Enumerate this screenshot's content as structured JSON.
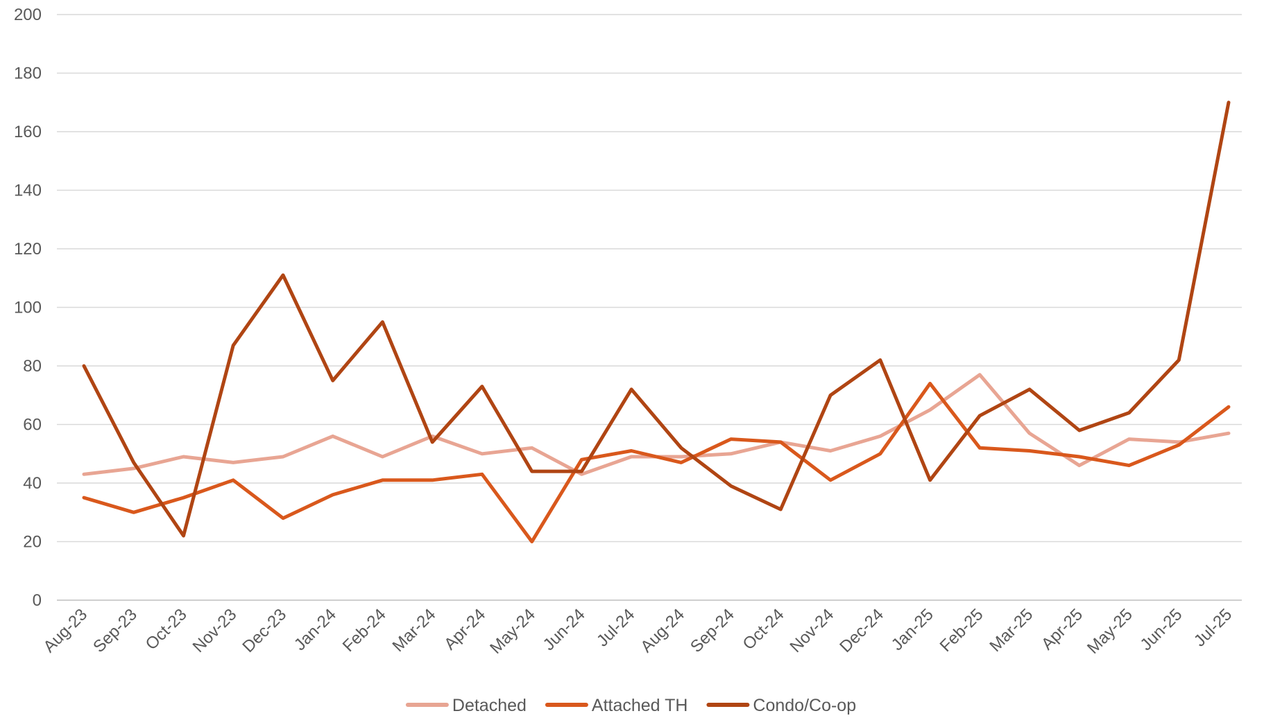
{
  "chart_data": {
    "type": "line",
    "title": "",
    "xlabel": "",
    "ylabel": "",
    "ylim": [
      0,
      200
    ],
    "y_ticks": [
      0,
      20,
      40,
      60,
      80,
      100,
      120,
      140,
      160,
      180,
      200
    ],
    "grid": "horizontal",
    "legend_position": "bottom",
    "categories": [
      "Aug-23",
      "Sep-23",
      "Oct-23",
      "Nov-23",
      "Dec-23",
      "Jan-24",
      "Feb-24",
      "Mar-24",
      "Apr-24",
      "May-24",
      "Jun-24",
      "Jul-24",
      "Aug-24",
      "Sep-24",
      "Oct-24",
      "Nov-24",
      "Dec-24",
      "Jan-25",
      "Feb-25",
      "Mar-25",
      "Apr-25",
      "May-25",
      "Jun-25",
      "Jul-25"
    ],
    "series": [
      {
        "name": "Detached",
        "color": "#e8a593",
        "values": [
          43,
          45,
          49,
          47,
          49,
          56,
          49,
          56,
          50,
          52,
          43,
          49,
          49,
          50,
          54,
          51,
          56,
          65,
          77,
          57,
          46,
          55,
          54,
          57
        ]
      },
      {
        "name": "Attached TH",
        "color": "#d9581c",
        "values": [
          35,
          30,
          35,
          41,
          28,
          36,
          41,
          41,
          43,
          20,
          48,
          51,
          47,
          55,
          54,
          41,
          50,
          74,
          52,
          51,
          49,
          46,
          53,
          66
        ]
      },
      {
        "name": "Condo/Co-op",
        "color": "#b04513",
        "values": [
          80,
          47,
          22,
          87,
          111,
          75,
          95,
          54,
          73,
          44,
          44,
          72,
          52,
          39,
          31,
          70,
          82,
          41,
          63,
          72,
          58,
          64,
          82,
          170
        ]
      }
    ]
  }
}
